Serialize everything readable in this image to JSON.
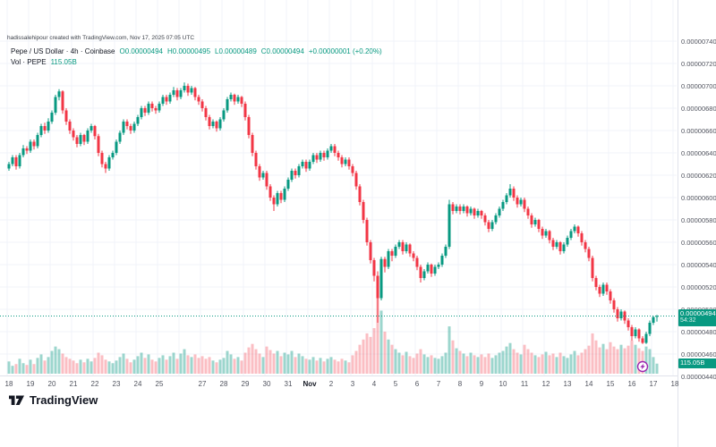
{
  "watermark": "hadissalehipour created with TradingView.com, Nov 17, 2025 07:05 UTC",
  "legend": {
    "title": "Pepe / US Dollar · 4h · Coinbase",
    "o": "O0.00000494",
    "h": "H0.00000495",
    "l": "L0.00000489",
    "c": "C0.00000494",
    "change": "+0.00000001 (+0.20%)",
    "vol_label": "Vol · PEPE",
    "vol_value": "115.05B"
  },
  "logo_text": "TradingView",
  "colors": {
    "up": "#089981",
    "down": "#f23645",
    "volume_up": "rgba(8,153,129,0.40)",
    "volume_down": "rgba(242,54,69,0.32)",
    "grid": "#f0f3fa",
    "axis_border": "#e0e3eb",
    "axis_text": "#50535e",
    "badge_bg": "#089981",
    "price_line": "#089981",
    "marker": "#9c27b0",
    "text": "#131722"
  },
  "price_scale": {
    "top_value": 740,
    "tick_step": 20,
    "labels": [
      "0.00000740",
      "0.00000720",
      "0.00000700",
      "0.00000680",
      "0.00000660",
      "0.00000640",
      "0.00000620",
      "0.00000600",
      "0.00000580",
      "0.00000560",
      "0.00000540",
      "0.00000520",
      "0.00000500",
      "0.00000480",
      "0.00000460",
      "0.00000440"
    ],
    "current_badge": {
      "price": "0.00000494",
      "countdown": "54:32"
    },
    "volume_badge": "115.05B"
  },
  "time_scale": {
    "labels": [
      {
        "text": "18",
        "day": 0
      },
      {
        "text": "19",
        "day": 1
      },
      {
        "text": "20",
        "day": 2
      },
      {
        "text": "21",
        "day": 3
      },
      {
        "text": "22",
        "day": 4
      },
      {
        "text": "23",
        "day": 5
      },
      {
        "text": "24",
        "day": 6
      },
      {
        "text": "25",
        "day": 7
      },
      {
        "text": "27",
        "day": 9
      },
      {
        "text": "28",
        "day": 10
      },
      {
        "text": "29",
        "day": 11
      },
      {
        "text": "30",
        "day": 12
      },
      {
        "text": "31",
        "day": 13
      },
      {
        "text": "Nov",
        "day": 14,
        "month": true
      },
      {
        "text": "2",
        "day": 15
      },
      {
        "text": "3",
        "day": 16
      },
      {
        "text": "4",
        "day": 17
      },
      {
        "text": "5",
        "day": 18
      },
      {
        "text": "6",
        "day": 19
      },
      {
        "text": "7",
        "day": 20
      },
      {
        "text": "8",
        "day": 21
      },
      {
        "text": "9",
        "day": 22
      },
      {
        "text": "10",
        "day": 23
      },
      {
        "text": "11",
        "day": 24
      },
      {
        "text": "12",
        "day": 25
      },
      {
        "text": "13",
        "day": 26
      },
      {
        "text": "14",
        "day": 27
      },
      {
        "text": "15",
        "day": 28
      },
      {
        "text": "16",
        "day": 29
      },
      {
        "text": "17",
        "day": 30
      },
      {
        "text": "18",
        "day": 31
      }
    ]
  },
  "event_marker": {
    "candle_index": 177,
    "glyph": "lightning"
  },
  "chart_data": {
    "type": "candlestick",
    "title": "Pepe / US Dollar · 4h · Coinbase",
    "symbol": "PEPE/USD",
    "exchange": "Coinbase",
    "interval": "4h",
    "price_unit": 1e-08,
    "ohlc_note": "candle values are in units of 0.00000001 USD",
    "x_axis": {
      "start": "Oct 18",
      "end": "Nov 18",
      "candles_per_day": 6
    },
    "y_axis": {
      "min": 440,
      "max": 740,
      "tick_step": 20,
      "grid": true
    },
    "last": {
      "open": "0.00000494",
      "high": "0.00000495",
      "low": "0.00000489",
      "close": "0.00000494",
      "change": "+0.00000001",
      "change_pct": "+0.20%",
      "volume": "115.05B",
      "countdown": "54:32"
    },
    "candles": [
      [
        626,
        632,
        624,
        630
      ],
      [
        630,
        638,
        628,
        636
      ],
      [
        636,
        638,
        625,
        628
      ],
      [
        628,
        640,
        626,
        638
      ],
      [
        638,
        647,
        636,
        644
      ],
      [
        644,
        646,
        639,
        642
      ],
      [
        642,
        652,
        640,
        650
      ],
      [
        650,
        652,
        643,
        646
      ],
      [
        646,
        658,
        644,
        656
      ],
      [
        656,
        666,
        654,
        664
      ],
      [
        664,
        667,
        657,
        660
      ],
      [
        660,
        671,
        658,
        668
      ],
      [
        668,
        678,
        666,
        676
      ],
      [
        676,
        692,
        674,
        690
      ],
      [
        690,
        697,
        687,
        695
      ],
      [
        695,
        696,
        675,
        678
      ],
      [
        678,
        680,
        665,
        668
      ],
      [
        668,
        670,
        657,
        660
      ],
      [
        660,
        662,
        651,
        654
      ],
      [
        654,
        656,
        645,
        648
      ],
      [
        648,
        658,
        646,
        656
      ],
      [
        656,
        657,
        647,
        650
      ],
      [
        650,
        662,
        648,
        660
      ],
      [
        660,
        666,
        658,
        664
      ],
      [
        664,
        665,
        652,
        655
      ],
      [
        655,
        657,
        637,
        640
      ],
      [
        640,
        642,
        627,
        630
      ],
      [
        630,
        632,
        622,
        626
      ],
      [
        626,
        638,
        624,
        636
      ],
      [
        636,
        642,
        634,
        640
      ],
      [
        640,
        652,
        638,
        650
      ],
      [
        650,
        660,
        648,
        658
      ],
      [
        658,
        670,
        656,
        668
      ],
      [
        668,
        670,
        661,
        664
      ],
      [
        664,
        666,
        657,
        660
      ],
      [
        660,
        668,
        658,
        666
      ],
      [
        666,
        674,
        664,
        672
      ],
      [
        672,
        682,
        670,
        680
      ],
      [
        680,
        682,
        673,
        676
      ],
      [
        676,
        686,
        674,
        684
      ],
      [
        684,
        686,
        677,
        680
      ],
      [
        680,
        682,
        675,
        678
      ],
      [
        678,
        686,
        676,
        684
      ],
      [
        684,
        692,
        682,
        690
      ],
      [
        690,
        692,
        683,
        686
      ],
      [
        686,
        694,
        684,
        692
      ],
      [
        692,
        699,
        690,
        696
      ],
      [
        696,
        698,
        687,
        690
      ],
      [
        690,
        698,
        688,
        696
      ],
      [
        696,
        703,
        694,
        700
      ],
      [
        700,
        702,
        691,
        694
      ],
      [
        694,
        700,
        692,
        698
      ],
      [
        698,
        699,
        687,
        690
      ],
      [
        690,
        692,
        683,
        686
      ],
      [
        686,
        688,
        677,
        680
      ],
      [
        680,
        682,
        669,
        672
      ],
      [
        672,
        674,
        661,
        664
      ],
      [
        664,
        670,
        662,
        668
      ],
      [
        668,
        669,
        659,
        662
      ],
      [
        662,
        672,
        660,
        670
      ],
      [
        670,
        680,
        668,
        678
      ],
      [
        678,
        690,
        676,
        688
      ],
      [
        688,
        694,
        686,
        692
      ],
      [
        692,
        693,
        683,
        686
      ],
      [
        686,
        692,
        684,
        690
      ],
      [
        690,
        691,
        681,
        684
      ],
      [
        684,
        686,
        669,
        672
      ],
      [
        672,
        674,
        653,
        656
      ],
      [
        656,
        658,
        637,
        640
      ],
      [
        640,
        642,
        625,
        628
      ],
      [
        628,
        630,
        615,
        618
      ],
      [
        618,
        624,
        616,
        622
      ],
      [
        622,
        624,
        607,
        610
      ],
      [
        610,
        612,
        597,
        600
      ],
      [
        600,
        602,
        588,
        594
      ],
      [
        594,
        606,
        592,
        604
      ],
      [
        604,
        606,
        595,
        598
      ],
      [
        598,
        610,
        596,
        608
      ],
      [
        608,
        618,
        606,
        616
      ],
      [
        616,
        626,
        614,
        624
      ],
      [
        624,
        626,
        617,
        620
      ],
      [
        620,
        630,
        618,
        628
      ],
      [
        628,
        634,
        626,
        632
      ],
      [
        632,
        634,
        623,
        626
      ],
      [
        626,
        634,
        624,
        632
      ],
      [
        632,
        640,
        630,
        638
      ],
      [
        638,
        640,
        631,
        634
      ],
      [
        634,
        642,
        632,
        640
      ],
      [
        640,
        642,
        633,
        636
      ],
      [
        636,
        644,
        634,
        642
      ],
      [
        642,
        648,
        640,
        646
      ],
      [
        646,
        648,
        637,
        640
      ],
      [
        640,
        642,
        633,
        636
      ],
      [
        636,
        638,
        627,
        630
      ],
      [
        630,
        636,
        628,
        634
      ],
      [
        634,
        636,
        625,
        628
      ],
      [
        628,
        630,
        619,
        622
      ],
      [
        622,
        624,
        607,
        610
      ],
      [
        610,
        612,
        593,
        596
      ],
      [
        596,
        598,
        577,
        580
      ],
      [
        580,
        582,
        557,
        560
      ],
      [
        560,
        562,
        541,
        544
      ],
      [
        544,
        546,
        525,
        530
      ],
      [
        530,
        534,
        488,
        510
      ],
      [
        510,
        547,
        508,
        545
      ],
      [
        545,
        547,
        533,
        538
      ],
      [
        538,
        554,
        536,
        552
      ],
      [
        552,
        554,
        543,
        548
      ],
      [
        548,
        558,
        546,
        556
      ],
      [
        556,
        562,
        554,
        560
      ],
      [
        560,
        562,
        549,
        552
      ],
      [
        552,
        560,
        550,
        558
      ],
      [
        558,
        559,
        547,
        550
      ],
      [
        550,
        552,
        543,
        546
      ],
      [
        546,
        548,
        535,
        538
      ],
      [
        538,
        540,
        524,
        528
      ],
      [
        528,
        536,
        526,
        534
      ],
      [
        534,
        542,
        532,
        540
      ],
      [
        540,
        541,
        529,
        532
      ],
      [
        532,
        540,
        530,
        538
      ],
      [
        538,
        542,
        536,
        540
      ],
      [
        540,
        550,
        538,
        548
      ],
      [
        548,
        558,
        546,
        556
      ],
      [
        556,
        598,
        554,
        594
      ],
      [
        594,
        596,
        585,
        588
      ],
      [
        588,
        594,
        586,
        592
      ],
      [
        592,
        594,
        585,
        588
      ],
      [
        588,
        594,
        586,
        592
      ],
      [
        592,
        593,
        583,
        586
      ],
      [
        586,
        592,
        584,
        590
      ],
      [
        590,
        591,
        581,
        584
      ],
      [
        584,
        590,
        582,
        588
      ],
      [
        588,
        589,
        581,
        584
      ],
      [
        584,
        586,
        575,
        578
      ],
      [
        578,
        580,
        569,
        572
      ],
      [
        572,
        580,
        570,
        578
      ],
      [
        578,
        586,
        576,
        584
      ],
      [
        584,
        592,
        582,
        590
      ],
      [
        590,
        598,
        588,
        596
      ],
      [
        596,
        604,
        594,
        602
      ],
      [
        602,
        612,
        600,
        608
      ],
      [
        608,
        610,
        597,
        600
      ],
      [
        600,
        602,
        591,
        594
      ],
      [
        594,
        600,
        592,
        598
      ],
      [
        598,
        600,
        587,
        590
      ],
      [
        590,
        592,
        581,
        584
      ],
      [
        584,
        586,
        573,
        576
      ],
      [
        576,
        582,
        574,
        580
      ],
      [
        580,
        581,
        569,
        572
      ],
      [
        572,
        574,
        563,
        566
      ],
      [
        566,
        572,
        564,
        570
      ],
      [
        570,
        571,
        559,
        562
      ],
      [
        562,
        564,
        553,
        556
      ],
      [
        556,
        562,
        554,
        560
      ],
      [
        560,
        561,
        549,
        552
      ],
      [
        552,
        560,
        550,
        558
      ],
      [
        558,
        566,
        556,
        564
      ],
      [
        564,
        572,
        562,
        570
      ],
      [
        570,
        576,
        568,
        574
      ],
      [
        574,
        575,
        565,
        568
      ],
      [
        568,
        570,
        557,
        560
      ],
      [
        560,
        562,
        551,
        554
      ],
      [
        554,
        556,
        543,
        546
      ],
      [
        546,
        548,
        525,
        528
      ],
      [
        528,
        530,
        517,
        520
      ],
      [
        520,
        522,
        511,
        514
      ],
      [
        514,
        524,
        512,
        522
      ],
      [
        522,
        524,
        513,
        516
      ],
      [
        516,
        518,
        505,
        508
      ],
      [
        508,
        510,
        497,
        500
      ],
      [
        500,
        502,
        489,
        492
      ],
      [
        492,
        500,
        490,
        498
      ],
      [
        498,
        499,
        487,
        490
      ],
      [
        490,
        492,
        481,
        484
      ],
      [
        484,
        486,
        472,
        476
      ],
      [
        476,
        484,
        474,
        482
      ],
      [
        482,
        483,
        471,
        474
      ],
      [
        474,
        476,
        469,
        470
      ],
      [
        470,
        480,
        469,
        478
      ],
      [
        478,
        490,
        476,
        488
      ],
      [
        488,
        494,
        486,
        493
      ],
      [
        494,
        495,
        489,
        494
      ]
    ],
    "volumes": [
      140,
      90,
      110,
      170,
      120,
      100,
      160,
      110,
      180,
      220,
      150,
      190,
      260,
      310,
      280,
      230,
      190,
      170,
      150,
      120,
      160,
      130,
      170,
      140,
      180,
      240,
      210,
      160,
      140,
      120,
      150,
      190,
      230,
      170,
      130,
      160,
      200,
      240,
      180,
      220,
      160,
      140,
      180,
      210,
      160,
      200,
      240,
      170,
      230,
      280,
      210,
      190,
      220,
      180,
      200,
      170,
      190,
      150,
      130,
      160,
      180,
      260,
      220,
      170,
      190,
      150,
      240,
      300,
      340,
      280,
      230,
      190,
      310,
      270,
      230,
      260,
      200,
      240,
      220,
      260,
      190,
      230,
      200,
      170,
      160,
      190,
      150,
      180,
      140,
      170,
      190,
      160,
      140,
      170,
      150,
      130,
      210,
      260,
      330,
      390,
      460,
      420,
      520,
      950,
      720,
      480,
      390,
      330,
      280,
      240,
      210,
      250,
      200,
      180,
      230,
      280,
      220,
      190,
      210,
      180,
      170,
      200,
      240,
      540,
      380,
      290,
      260,
      230,
      200,
      240,
      210,
      190,
      220,
      190,
      230,
      180,
      210,
      240,
      260,
      310,
      350,
      280,
      240,
      220,
      330,
      280,
      240,
      210,
      190,
      220,
      250,
      210,
      230,
      190,
      240,
      200,
      180,
      220,
      260,
      210,
      240,
      280,
      320,
      460,
      380,
      300,
      340,
      280,
      360,
      310,
      280,
      330,
      290,
      320,
      380,
      330,
      290,
      260,
      310,
      280,
      190,
      115.05
    ],
    "last_price_units": 494,
    "legend_position": "top-left"
  }
}
